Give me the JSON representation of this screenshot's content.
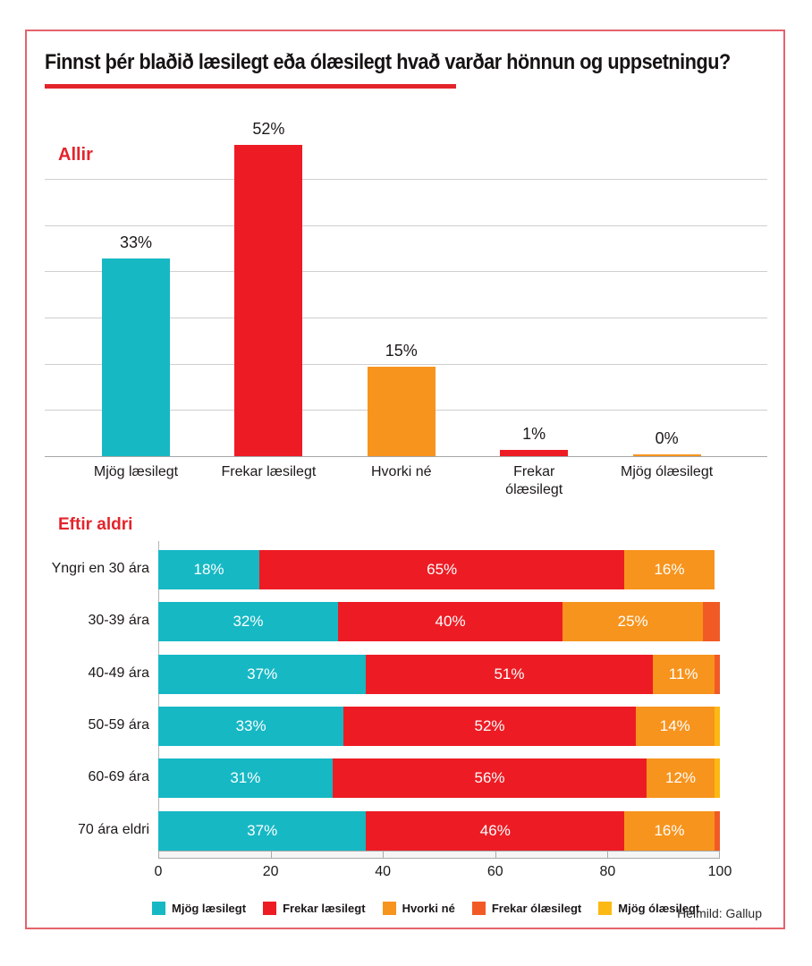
{
  "title": "Finnst þér blaðið læsilegt eða ólæsilegt hvað varðar hönnun og uppsetningu?",
  "source": "Heimild: Gallup",
  "palette": {
    "teal": "#16b8c4",
    "red": "#ed1c24",
    "orange": "#f7941d",
    "dark_orange": "#f15a25",
    "yellow": "#fcb813",
    "accent": "#e3242b"
  },
  "chart_data": [
    {
      "type": "bar",
      "title": "Allir",
      "categories": [
        "Mjög læsilegt",
        "Frekar læsilegt",
        "Hvorki né",
        "Frekar ólæsilegt",
        "Mjög ólæsilegt"
      ],
      "values": [
        33,
        52,
        15,
        1,
        0
      ],
      "value_labels": [
        "33%",
        "52%",
        "15%",
        "1%",
        "0%"
      ],
      "bar_colors": [
        "teal",
        "red",
        "orange",
        "red",
        "orange"
      ],
      "ylim": [
        0,
        55
      ],
      "grid": true
    },
    {
      "type": "bar",
      "orientation": "horizontal-stacked",
      "title": "Eftir aldri",
      "categories": [
        "Yngri en 30 ára",
        "30-39 ára",
        "40-49 ára",
        "50-59 ára",
        "60-69 ára",
        "70 ára eldri"
      ],
      "series": [
        {
          "name": "Mjög læsilegt",
          "color": "teal",
          "values": [
            18,
            32,
            37,
            33,
            31,
            37
          ]
        },
        {
          "name": "Frekar læsilegt",
          "color": "red",
          "values": [
            65,
            40,
            51,
            52,
            56,
            46
          ]
        },
        {
          "name": "Hvorki né",
          "color": "orange",
          "values": [
            16,
            25,
            11,
            14,
            12,
            16
          ]
        },
        {
          "name": "Frekar ólæsilegt",
          "color": "dark_orange",
          "values": [
            0,
            3,
            1,
            0,
            0,
            1
          ]
        },
        {
          "name": "Mjög ólæsilegt",
          "color": "yellow",
          "values": [
            0,
            0,
            0,
            1,
            1,
            0
          ]
        }
      ],
      "xlim": [
        0,
        100
      ],
      "x_ticks": [
        0,
        20,
        40,
        60,
        80,
        100
      ],
      "label_min_value": 10
    }
  ],
  "legend": [
    {
      "label": "Mjög læsilegt",
      "color": "teal"
    },
    {
      "label": "Frekar læsilegt",
      "color": "red"
    },
    {
      "label": "Hvorki né",
      "color": "orange"
    },
    {
      "label": "Frekar ólæsilegt",
      "color": "dark_orange"
    },
    {
      "label": "Mjög ólæsilegt",
      "color": "yellow"
    }
  ]
}
